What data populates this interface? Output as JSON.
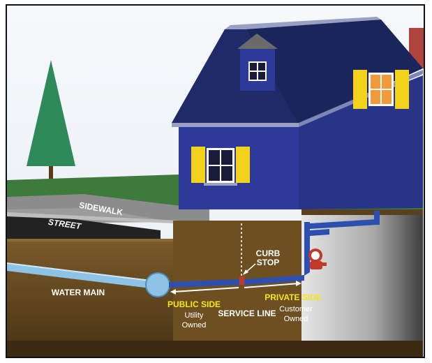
{
  "labels": {
    "sidewalk": "SIDEWALK",
    "street": "STREET",
    "curb_stop_line1": "CURB",
    "curb_stop_line2": "STOP",
    "water_main": "WATER MAIN",
    "public_side": "PUBLIC SIDE",
    "utility_line1": "Utility",
    "utility_line2": "Owned",
    "service_line": "SERVICE LINE",
    "private_side": "PRIVATE SIDE",
    "customer_line1": "Customer",
    "customer_line2": "Owned"
  },
  "colors": {
    "sky": "#ffffff",
    "grass": "#3d7a3c",
    "house_wall": "#2e3a9a",
    "roof": "#1f2a68",
    "shutter": "#f2d21b",
    "soil": "#6a4e23",
    "basement": "#cfcfcf",
    "pipe": "#2d4fb0",
    "water_main": "#8ec3e6",
    "highlight": "#f5e61a",
    "text": "#ffffff"
  }
}
